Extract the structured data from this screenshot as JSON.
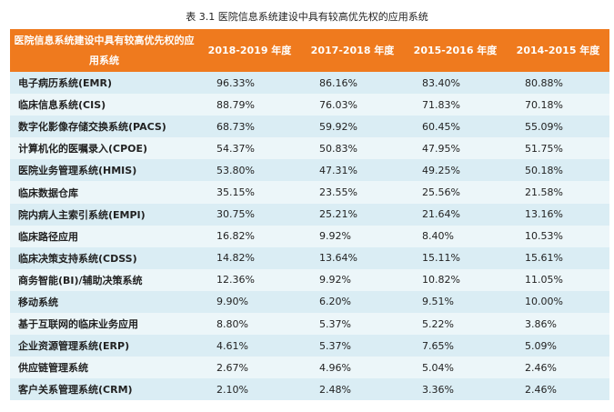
{
  "title": "表 3.1  医院信息系统建设中具有较高优先权的应用系统",
  "headers": [
    "医院信息系统建设中具有较高优先权的应用系统",
    "2018-2019 年度",
    "2017-2018 年度",
    "2015-2016 年度",
    "2014-2015 年度"
  ],
  "rows": [
    [
      "电子病历系统(EMR)",
      "96.33%",
      "86.16%",
      "83.40%",
      "80.88%"
    ],
    [
      "临床信息系统(CIS)",
      "88.79%",
      "76.03%",
      "71.83%",
      "70.18%"
    ],
    [
      "数字化影像存储交换系统(PACS)",
      "68.73%",
      "59.92%",
      "60.45%",
      "55.09%"
    ],
    [
      "计算机化的医嘱录入(CPOE)",
      "54.37%",
      "50.83%",
      "47.95%",
      "51.75%"
    ],
    [
      "医院业务管理系统(HMIS)",
      "53.80%",
      "47.31%",
      "49.25%",
      "50.18%"
    ],
    [
      "临床数据仓库",
      "35.15%",
      "23.55%",
      "25.56%",
      "21.58%"
    ],
    [
      "院内病人主索引系统(EMPI)",
      "30.75%",
      "25.21%",
      "21.64%",
      "13.16%"
    ],
    [
      "临床路径应用",
      "16.82%",
      "9.92%",
      "8.40%",
      "10.53%"
    ],
    [
      "临床决策支持系统(CDSS)",
      "14.82%",
      "13.64%",
      "15.11%",
      "15.61%"
    ],
    [
      "商务智能(BI)/辅助决策系统",
      "12.36%",
      "9.92%",
      "10.82%",
      "11.05%"
    ],
    [
      "移动系统",
      "9.90%",
      "6.20%",
      "9.51%",
      "10.00%"
    ],
    [
      "基于互联网的临床业务应用",
      "8.80%",
      "5.37%",
      "5.22%",
      "3.86%"
    ],
    [
      "企业资源管理系统(ERP)",
      "4.61%",
      "5.37%",
      "7.65%",
      "5.09%"
    ],
    [
      "供应链管理系统",
      "2.67%",
      "4.96%",
      "5.04%",
      "2.46%"
    ],
    [
      "客户关系管理系统(CRM)",
      "2.10%",
      "2.48%",
      "3.36%",
      "2.46%"
    ]
  ]
}
